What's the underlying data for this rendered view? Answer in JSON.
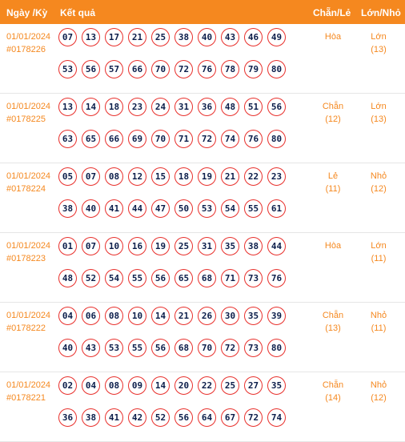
{
  "header": {
    "date": "Ngày /Kỳ",
    "result": "Kết quả",
    "chanle": "Chẵn/Lẻ",
    "lonnho": "Lớn/Nhỏ"
  },
  "rows": [
    {
      "date": "01/01/2024",
      "code": "#0178226",
      "balls": [
        "07",
        "13",
        "17",
        "21",
        "25",
        "38",
        "40",
        "43",
        "46",
        "49",
        "53",
        "56",
        "57",
        "66",
        "70",
        "72",
        "76",
        "78",
        "79",
        "80"
      ],
      "chanle": "Hòa",
      "chanle_count": "",
      "lonnho": "Lớn",
      "lonnho_count": "(13)"
    },
    {
      "date": "01/01/2024",
      "code": "#0178225",
      "balls": [
        "13",
        "14",
        "18",
        "23",
        "24",
        "31",
        "36",
        "48",
        "51",
        "56",
        "63",
        "65",
        "66",
        "69",
        "70",
        "71",
        "72",
        "74",
        "76",
        "80"
      ],
      "chanle": "Chẵn",
      "chanle_count": "(12)",
      "lonnho": "Lớn",
      "lonnho_count": "(13)"
    },
    {
      "date": "01/01/2024",
      "code": "#0178224",
      "balls": [
        "05",
        "07",
        "08",
        "12",
        "15",
        "18",
        "19",
        "21",
        "22",
        "23",
        "38",
        "40",
        "41",
        "44",
        "47",
        "50",
        "53",
        "54",
        "55",
        "61"
      ],
      "chanle": "Lẻ",
      "chanle_count": "(11)",
      "lonnho": "Nhỏ",
      "lonnho_count": "(12)"
    },
    {
      "date": "01/01/2024",
      "code": "#0178223",
      "balls": [
        "01",
        "07",
        "10",
        "16",
        "19",
        "25",
        "31",
        "35",
        "38",
        "44",
        "48",
        "52",
        "54",
        "55",
        "56",
        "65",
        "68",
        "71",
        "73",
        "76"
      ],
      "chanle": "Hòa",
      "chanle_count": "",
      "lonnho": "Lớn",
      "lonnho_count": "(11)"
    },
    {
      "date": "01/01/2024",
      "code": "#0178222",
      "balls": [
        "04",
        "06",
        "08",
        "10",
        "14",
        "21",
        "26",
        "30",
        "35",
        "39",
        "40",
        "43",
        "53",
        "55",
        "56",
        "68",
        "70",
        "72",
        "73",
        "80"
      ],
      "chanle": "Chẵn",
      "chanle_count": "(13)",
      "lonnho": "Nhỏ",
      "lonnho_count": "(11)"
    },
    {
      "date": "01/01/2024",
      "code": "#0178221",
      "balls": [
        "02",
        "04",
        "08",
        "09",
        "14",
        "20",
        "22",
        "25",
        "27",
        "35",
        "36",
        "38",
        "41",
        "42",
        "52",
        "56",
        "64",
        "67",
        "72",
        "74"
      ],
      "chanle": "Chẵn",
      "chanle_count": "(14)",
      "lonnho": "Nhỏ",
      "lonnho_count": "(12)"
    }
  ]
}
